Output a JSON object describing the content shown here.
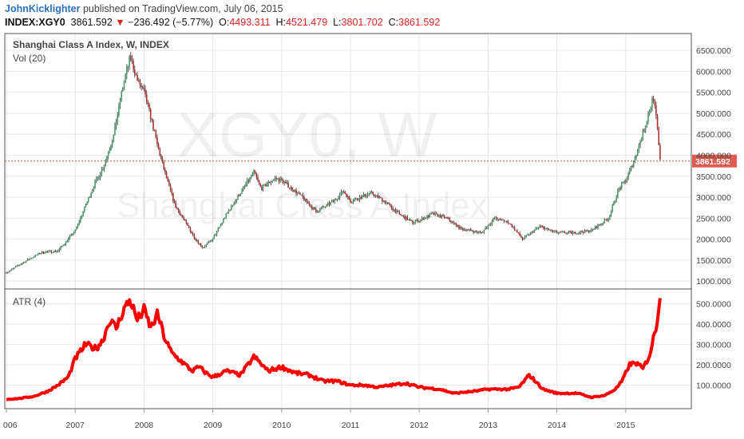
{
  "header": {
    "author": "JohnKicklighter",
    "published": "published on TradingView.com, July 06, 2015",
    "symbol": "INDEX:XGY0",
    "last": "3861.592",
    "change": "−236.492 (−5.77%)",
    "open_label": "O:",
    "open": "4493.311",
    "high_label": "H:",
    "high": "4521.479",
    "low_label": "L:",
    "low": "3801.702",
    "close_label": "C:",
    "close": "3861.592"
  },
  "chart_data": [
    {
      "type": "candlestick",
      "title": "Shanghai Class A Index, W, INDEX",
      "subtitle": "Vol (20)",
      "watermark_symbol": "XGY0, W",
      "watermark_name": "Shanghai Class A Index",
      "ylim": [
        850,
        6750
      ],
      "yticks": [
        "6500.000",
        "6000.000",
        "5500.000",
        "5000.000",
        "4500.000",
        "4000.000",
        "3500.000",
        "3000.000",
        "2500.000",
        "2000.000",
        "1500.000",
        "1000.000"
      ],
      "last_price_label": "3861.592",
      "last_price": 3861.592,
      "series": [
        {
          "x": [
            2006.0,
            2006.25,
            2006.5,
            2006.75,
            2007.0,
            2007.25,
            2007.4,
            2007.55,
            2007.7,
            2007.8,
            2007.9,
            2008.0,
            2008.1,
            2008.2,
            2008.3,
            2008.45,
            2008.6,
            2008.75,
            2008.85,
            2009.0,
            2009.2,
            2009.4,
            2009.6,
            2009.7,
            2009.9,
            2010.0,
            2010.3,
            2010.5,
            2010.75,
            2010.9,
            2011.0,
            2011.3,
            2011.5,
            2011.7,
            2011.9,
            2012.0,
            2012.2,
            2012.4,
            2012.6,
            2012.9,
            2013.1,
            2013.3,
            2013.5,
            2013.75,
            2014.0,
            2014.25,
            2014.5,
            2014.75,
            2014.9,
            2015.0,
            2015.15,
            2015.3,
            2015.4,
            2015.45,
            2015.5
          ],
          "values": [
            1200,
            1450,
            1680,
            1720,
            2200,
            3200,
            3700,
            4400,
            5700,
            6350,
            5800,
            5500,
            4900,
            4200,
            3600,
            2800,
            2400,
            2000,
            1800,
            2000,
            2600,
            3100,
            3600,
            3200,
            3450,
            3400,
            3000,
            2650,
            2900,
            3150,
            2900,
            3100,
            2900,
            2600,
            2400,
            2450,
            2600,
            2500,
            2250,
            2150,
            2500,
            2400,
            2000,
            2300,
            2150,
            2150,
            2200,
            2500,
            3200,
            3400,
            4000,
            4800,
            5400,
            4800,
            3862
          ]
        }
      ]
    },
    {
      "type": "line",
      "title": "ATR (4)",
      "ylim": [
        0,
        550
      ],
      "yticks": [
        "500.0000",
        "400.0000",
        "300.0000",
        "200.0000",
        "100.0000"
      ],
      "xlabels": [
        "006",
        "2007",
        "2008",
        "2009",
        "2010",
        "2011",
        "2012",
        "2013",
        "2014",
        "2015"
      ],
      "color": "#ff0000",
      "series": [
        {
          "x": [
            2006.0,
            2006.2,
            2006.4,
            2006.6,
            2006.75,
            2006.9,
            2007.0,
            2007.15,
            2007.3,
            2007.4,
            2007.5,
            2007.6,
            2007.7,
            2007.8,
            2007.9,
            2008.0,
            2008.1,
            2008.2,
            2008.3,
            2008.4,
            2008.5,
            2008.6,
            2008.7,
            2008.8,
            2008.9,
            2009.0,
            2009.2,
            2009.4,
            2009.6,
            2009.8,
            2010.0,
            2010.2,
            2010.4,
            2010.6,
            2010.8,
            2011.0,
            2011.2,
            2011.4,
            2011.6,
            2011.8,
            2012.0,
            2012.3,
            2012.5,
            2012.8,
            2013.0,
            2013.3,
            2013.45,
            2013.6,
            2013.8,
            2014.0,
            2014.3,
            2014.5,
            2014.7,
            2014.85,
            2014.95,
            2015.05,
            2015.15,
            2015.25,
            2015.35,
            2015.45,
            2015.5
          ],
          "values": [
            30,
            35,
            45,
            70,
            100,
            140,
            230,
            300,
            280,
            320,
            420,
            380,
            470,
            520,
            420,
            470,
            380,
            450,
            330,
            260,
            230,
            200,
            170,
            190,
            160,
            140,
            170,
            150,
            240,
            170,
            190,
            160,
            150,
            120,
            120,
            100,
            100,
            90,
            100,
            110,
            90,
            80,
            60,
            70,
            80,
            80,
            90,
            150,
            80,
            60,
            60,
            40,
            50,
            80,
            120,
            200,
            210,
            180,
            250,
            400,
            550
          ]
        }
      ]
    }
  ]
}
